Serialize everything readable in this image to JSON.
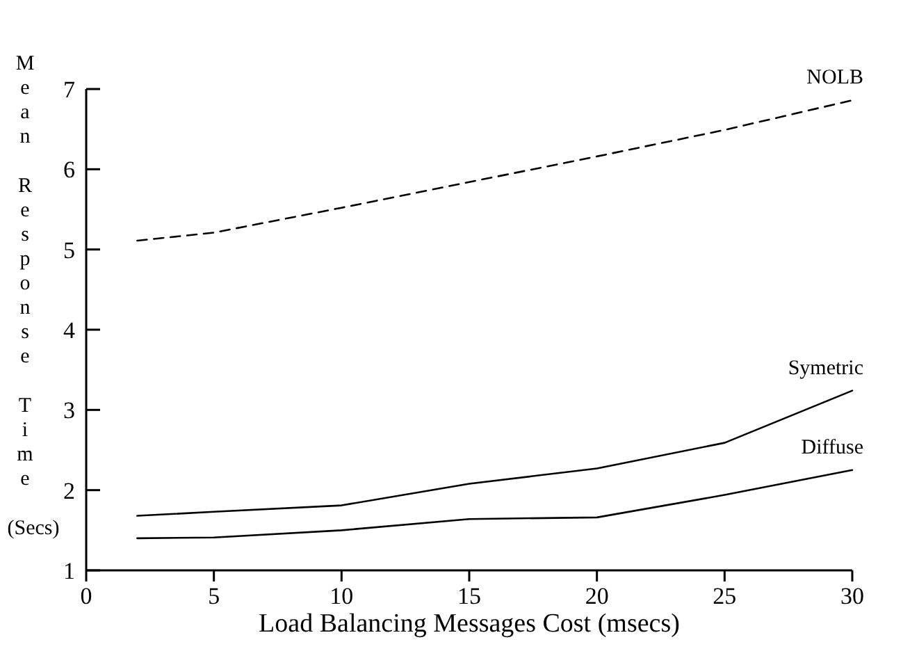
{
  "chart_data": {
    "type": "line",
    "xlabel": "Load Balancing Messages Cost (msecs)",
    "ylabel": "Mean Response Time (Secs)",
    "x": [
      2,
      5,
      10,
      15,
      20,
      25,
      30
    ],
    "series": [
      {
        "name": "NOLB",
        "color": "#000000",
        "line_style": "dashed",
        "values": [
          5.11,
          5.21,
          5.52,
          5.84,
          6.16,
          6.49,
          6.86
        ]
      },
      {
        "name": "Symetric",
        "color": "#000000",
        "line_style": "solid",
        "values": [
          1.68,
          1.73,
          1.81,
          2.08,
          2.27,
          2.59,
          3.24
        ]
      },
      {
        "name": "Diffuse",
        "color": "#000000",
        "line_style": "solid",
        "values": [
          1.4,
          1.41,
          1.5,
          1.64,
          1.66,
          1.94,
          2.25
        ]
      }
    ],
    "xlim": [
      0,
      30
    ],
    "xticks": [
      0,
      5,
      10,
      15,
      20,
      25,
      30
    ],
    "ylim": [
      1,
      7
    ],
    "yticks": [
      1,
      2,
      3,
      4,
      5,
      6,
      7
    ]
  }
}
